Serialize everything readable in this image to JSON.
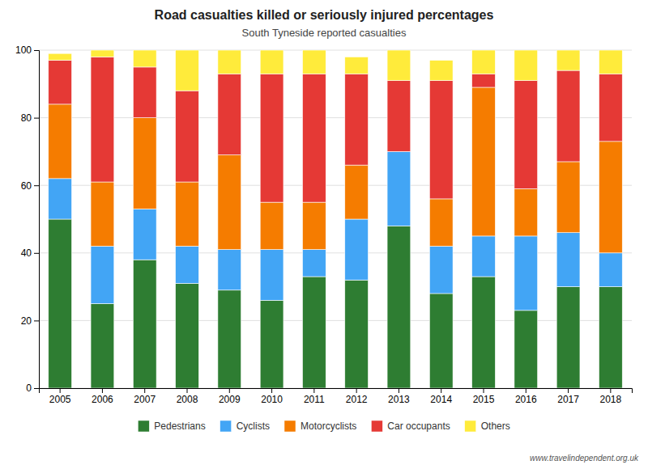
{
  "chart_data": {
    "type": "bar",
    "title": "Road casualties killed or seriously injured percentages",
    "subtitle": "South Tyneside reported casualties",
    "categories": [
      "2005",
      "2006",
      "2007",
      "2008",
      "2009",
      "2010",
      "2011",
      "2012",
      "2013",
      "2014",
      "2015",
      "2016",
      "2017",
      "2018"
    ],
    "series": [
      {
        "name": "Pedestrians",
        "color": "#2e7d32",
        "values": [
          50,
          25,
          38,
          31,
          29,
          26,
          33,
          32,
          48,
          28,
          33,
          23,
          30,
          30
        ]
      },
      {
        "name": "Cyclists",
        "color": "#42a5f5",
        "values": [
          12,
          17,
          15,
          11,
          12,
          15,
          8,
          18,
          22,
          14,
          12,
          22,
          16,
          10
        ]
      },
      {
        "name": "Motorcyclists",
        "color": "#f57c00",
        "values": [
          22,
          19,
          27,
          19,
          28,
          14,
          14,
          16,
          0,
          14,
          44,
          14,
          21,
          33
        ]
      },
      {
        "name": "Car occupants",
        "color": "#e53935",
        "values": [
          13,
          37,
          15,
          27,
          24,
          38,
          38,
          27,
          21,
          35,
          4,
          32,
          27,
          20
        ]
      },
      {
        "name": "Others",
        "color": "#ffeb3b",
        "values": [
          2,
          2,
          5,
          12,
          7,
          7,
          7,
          5,
          9,
          6,
          7,
          9,
          6,
          7
        ]
      }
    ],
    "stacked": true,
    "ylim": [
      0,
      100
    ],
    "yticks": [
      0,
      20,
      40,
      60,
      80,
      100
    ],
    "grid": true,
    "legend": "bottom",
    "annotations": [
      "www.travelindependent.org.uk"
    ]
  }
}
